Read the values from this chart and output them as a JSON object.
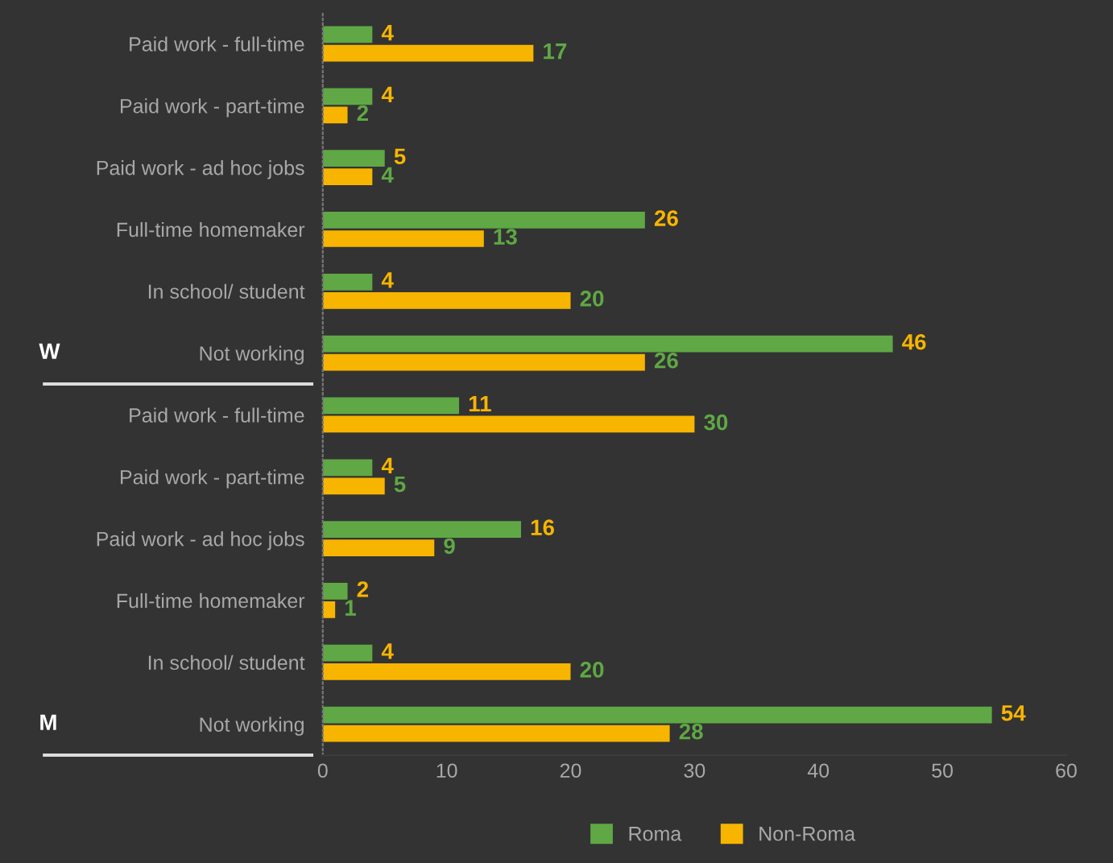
{
  "chart_data": {
    "type": "bar",
    "orientation": "horizontal",
    "categories": [
      "Paid work - full-time",
      "Paid work - part-time",
      "Paid work - ad hoc jobs",
      "Full-time homemaker",
      "In school/ student",
      "Not working",
      "Paid work - full-time",
      "Paid work - part-time",
      "Paid work - ad hoc jobs",
      "Full-time homemaker",
      "In school/ student",
      "Not working"
    ],
    "series": [
      {
        "name": "Roma",
        "color": "#5fa845",
        "values": [
          4,
          4,
          5,
          26,
          4,
          46,
          11,
          4,
          16,
          2,
          4,
          54
        ]
      },
      {
        "name": "Non-Roma",
        "color": "#f7b500",
        "values": [
          17,
          2,
          4,
          13,
          20,
          26,
          30,
          5,
          9,
          1,
          20,
          28
        ]
      }
    ],
    "xlim": [
      0,
      60
    ],
    "xticks": [
      0,
      10,
      20,
      30,
      40,
      50,
      60
    ],
    "data_labels": true,
    "legend": "bottom",
    "grid": false,
    "annotations": [
      "W",
      "M"
    ]
  }
}
